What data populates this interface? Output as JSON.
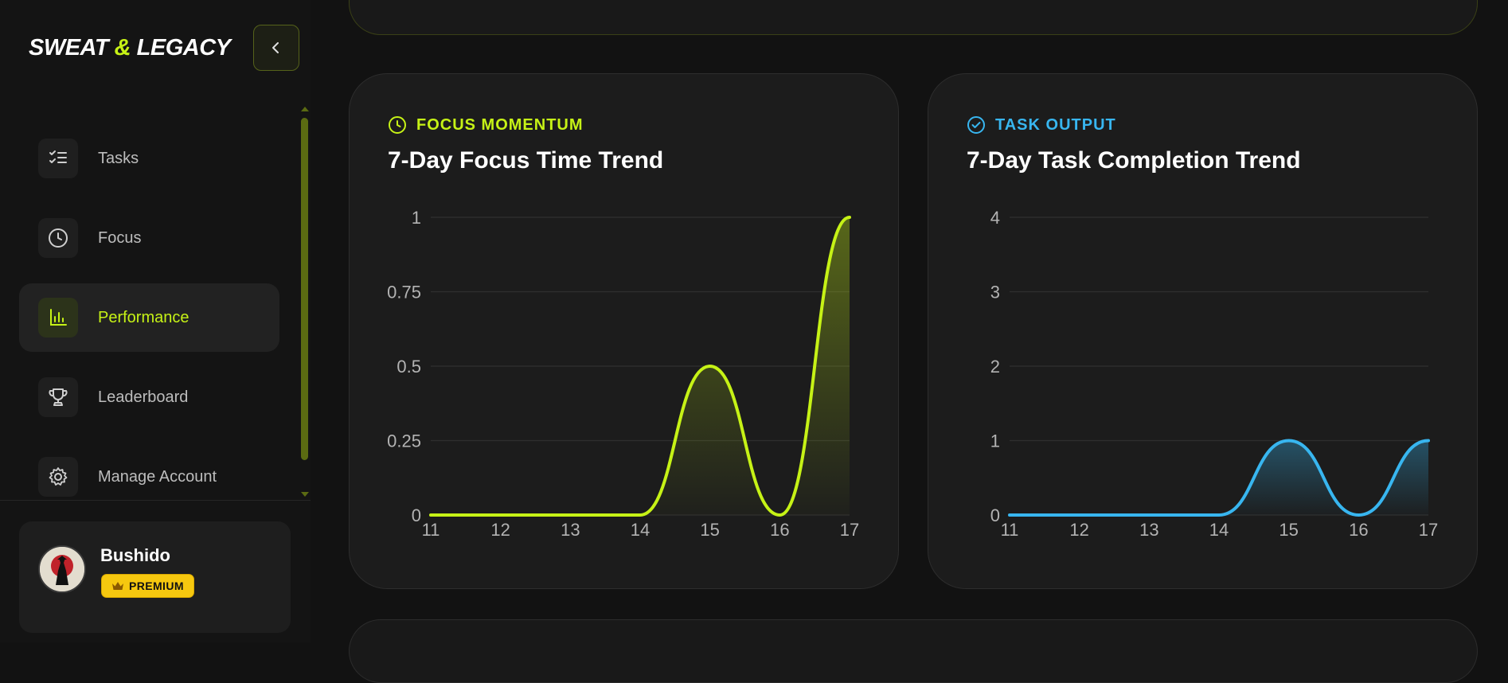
{
  "brand": {
    "part1": "SWEAT ",
    "amp": "&",
    "part2": " LEGACY"
  },
  "sidebar": {
    "items": [
      {
        "label": "Tasks",
        "icon": "tasks-icon",
        "active": false
      },
      {
        "label": "Focus",
        "icon": "clock-icon",
        "active": false
      },
      {
        "label": "Performance",
        "icon": "bar-chart-icon",
        "active": true
      },
      {
        "label": "Leaderboard",
        "icon": "trophy-icon",
        "active": false
      },
      {
        "label": "Manage Account",
        "icon": "gear-icon",
        "active": false
      }
    ]
  },
  "user": {
    "name": "Bushido",
    "badge": "PREMIUM"
  },
  "colors": {
    "accent": "#c6f216",
    "blue": "#38b6f0",
    "gold": "#f6c80f"
  },
  "cards": {
    "focus": {
      "eyebrow": "FOCUS MOMENTUM",
      "title": "7-Day Focus Time Trend"
    },
    "tasks": {
      "eyebrow": "TASK OUTPUT",
      "title": "7-Day Task Completion Trend"
    }
  },
  "chart_data": [
    {
      "type": "area",
      "title": "7-Day Focus Time Trend",
      "x": [
        "11",
        "12",
        "13",
        "14",
        "15",
        "16",
        "17"
      ],
      "values": [
        0,
        0,
        0,
        0,
        0.5,
        0,
        1
      ],
      "y_ticks": [
        "0",
        "0.25",
        "0.5",
        "0.75",
        "1"
      ],
      "ylim": [
        0,
        1
      ],
      "color": "#c6f216",
      "grid": true
    },
    {
      "type": "area",
      "title": "7-Day Task Completion Trend",
      "x": [
        "11",
        "12",
        "13",
        "14",
        "15",
        "16",
        "17"
      ],
      "values": [
        0,
        0,
        0,
        0,
        1,
        0,
        1
      ],
      "y_ticks": [
        "0",
        "1",
        "2",
        "3",
        "4"
      ],
      "ylim": [
        0,
        4
      ],
      "color": "#38b6f0",
      "grid": true
    }
  ]
}
